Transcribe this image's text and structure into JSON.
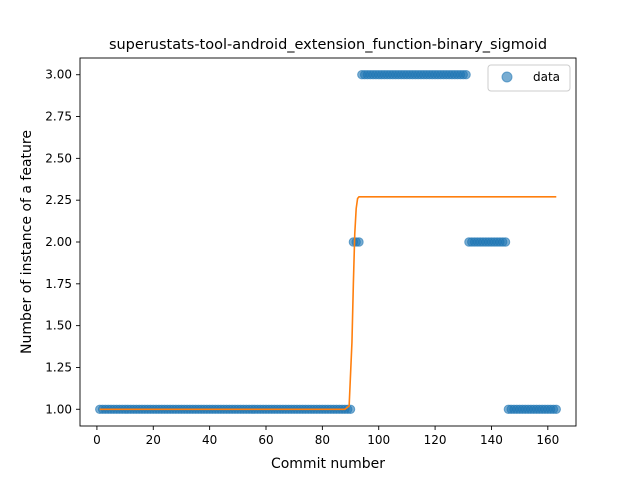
{
  "chart_data": {
    "type": "scatter",
    "title": "superustats-tool-android_extension_function-binary_sigmoid",
    "xlabel": "Commit number",
    "ylabel": "Number of instance of a feature",
    "xlim": [
      -6,
      170
    ],
    "ylim": [
      0.9,
      3.1
    ],
    "xticks": [
      0,
      20,
      40,
      60,
      80,
      100,
      120,
      140,
      160
    ],
    "xtick_labels": [
      "0",
      "20",
      "40",
      "60",
      "80",
      "100",
      "120",
      "140",
      "160"
    ],
    "yticks": [
      1.0,
      1.25,
      1.5,
      1.75,
      2.0,
      2.25,
      2.5,
      2.75,
      3.0
    ],
    "ytick_labels": [
      "1.00",
      "1.25",
      "1.50",
      "1.75",
      "2.00",
      "2.25",
      "2.50",
      "2.75",
      "3.00"
    ],
    "grid": false,
    "legend_position": "top-right",
    "series": [
      {
        "name": "data",
        "kind": "scatter",
        "color": "#1f77b4",
        "segments": [
          {
            "x_start": 1,
            "x_end": 90,
            "y": 1
          },
          {
            "x_start": 91,
            "x_end": 93,
            "y": 2
          },
          {
            "x_start": 94,
            "x_end": 131,
            "y": 3
          },
          {
            "x_start": 132,
            "x_end": 145,
            "y": 2
          },
          {
            "x_start": 146,
            "x_end": 163,
            "y": 1
          }
        ]
      },
      {
        "name": "",
        "kind": "line",
        "color": "#ff7f0e",
        "x": [
          1,
          88,
          89.5,
          90.5,
          91.0,
          91.5,
          92.0,
          92.5,
          93,
          163
        ],
        "y": [
          1.0,
          1.0,
          1.02,
          1.4,
          1.75,
          2.05,
          2.2,
          2.26,
          2.27,
          2.27
        ]
      }
    ]
  }
}
